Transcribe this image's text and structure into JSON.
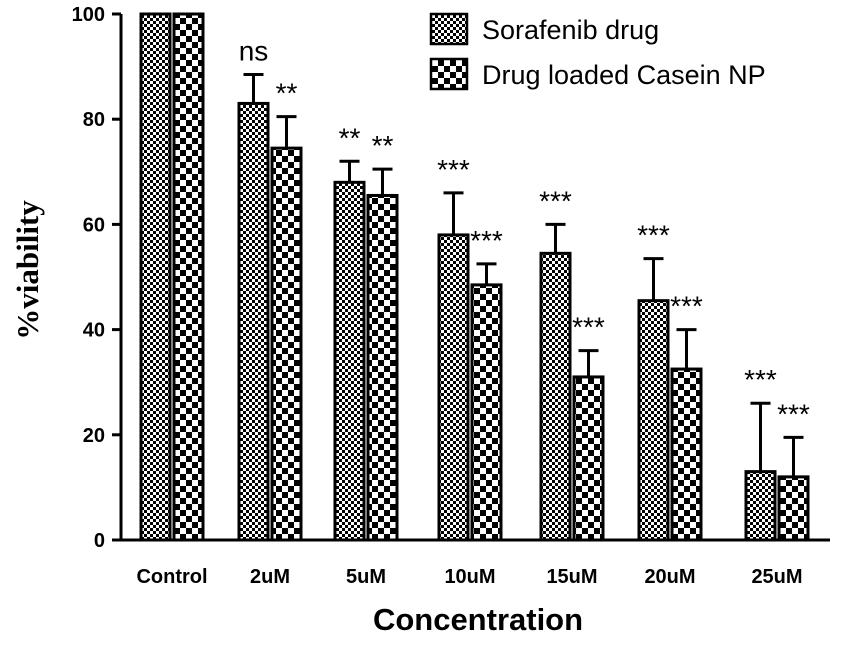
{
  "chart_data": {
    "type": "bar",
    "title": "",
    "xlabel": "Concentration",
    "ylabel": "%viability",
    "ylim": [
      0,
      100
    ],
    "yticks": [
      "0",
      "20",
      "40",
      "60",
      "80",
      "100"
    ],
    "categories": [
      "Control",
      "2uM",
      "5uM",
      "10uM",
      "15uM",
      "20uM",
      "25uM"
    ],
    "series": [
      {
        "name": "Sorafenib drug",
        "pattern": "fine-checker",
        "values": [
          100,
          83,
          68,
          58,
          54.5,
          45.5,
          13
        ],
        "errors": [
          0,
          5.5,
          4,
          8,
          5.5,
          8,
          13
        ],
        "significance": [
          "",
          "ns",
          "**",
          "***",
          "***",
          "***",
          "***"
        ]
      },
      {
        "name": "Drug loaded Casein NP",
        "pattern": "coarse-checker",
        "values": [
          100,
          74.5,
          65.5,
          48.5,
          31,
          32.5,
          12
        ],
        "errors": [
          0,
          6,
          5,
          4,
          5,
          7.5,
          7.5
        ],
        "significance": [
          "",
          "**",
          "**",
          "***",
          "***",
          "***",
          "***"
        ]
      }
    ],
    "legend_position": "top-right",
    "grid": false
  },
  "colors": {
    "bar_stroke": "#000000",
    "pattern_dark": "#000000",
    "pattern_light": "#ffffff"
  }
}
